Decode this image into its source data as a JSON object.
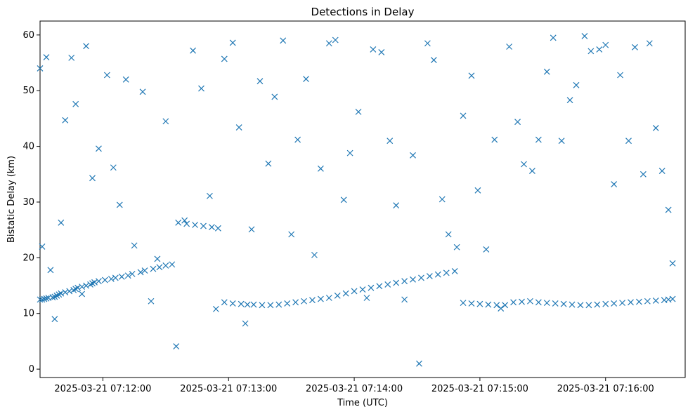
{
  "chart_data": {
    "type": "scatter",
    "title": "Detections in Delay",
    "xlabel": "Time (UTC)",
    "ylabel": "Bistatic Delay (km)",
    "marker": "x",
    "color": "#1f77b4",
    "grid": false,
    "x_ticks": [
      "2025-03-21 07:12:00",
      "2025-03-21 07:13:00",
      "2025-03-21 07:14:00",
      "2025-03-21 07:15:00",
      "2025-03-21 07:16:00"
    ],
    "y_ticks": [
      0,
      10,
      20,
      30,
      40,
      50,
      60
    ],
    "xlim": [
      "2025-03-21 07:11:30",
      "2025-03-21 07:16:38"
    ],
    "ylim": [
      -1.5,
      62.5
    ],
    "series": [
      {
        "x": [
          "07:11:30",
          "07:11:31",
          "07:11:32",
          "07:11:33",
          "07:11:34",
          "07:11:36",
          "07:11:37",
          "07:11:38",
          "07:11:39",
          "07:11:40",
          "07:11:42",
          "07:11:44",
          "07:11:46",
          "07:11:47",
          "07:11:48",
          "07:11:50",
          "07:11:52",
          "07:11:54",
          "07:11:55",
          "07:11:56",
          "07:11:58",
          "07:12:01",
          "07:12:04",
          "07:12:06",
          "07:12:09",
          "07:12:12",
          "07:12:14",
          "07:12:18",
          "07:12:20",
          "07:12:24",
          "07:12:27",
          "07:12:30",
          "07:12:33",
          "07:12:36",
          "07:12:40",
          "07:12:44",
          "07:12:48",
          "07:12:52",
          "07:12:55",
          "07:12:58",
          "07:13:02",
          "07:13:06",
          "07:13:09",
          "07:13:12",
          "07:13:16",
          "07:13:20",
          "07:13:24",
          "07:13:28",
          "07:13:32",
          "07:13:36",
          "07:13:40",
          "07:13:44",
          "07:13:48",
          "07:13:52",
          "07:13:56",
          "07:14:00",
          "07:14:04",
          "07:14:08",
          "07:14:12",
          "07:14:16",
          "07:14:20",
          "07:14:24",
          "07:14:28",
          "07:14:32",
          "07:14:36",
          "07:14:40",
          "07:14:44",
          "07:14:48",
          "07:14:52",
          "07:14:56",
          "07:15:00",
          "07:15:04",
          "07:15:08",
          "07:15:12",
          "07:15:16",
          "07:15:20",
          "07:15:24",
          "07:15:28",
          "07:15:32",
          "07:15:36",
          "07:15:40",
          "07:15:44",
          "07:15:48",
          "07:15:52",
          "07:15:56",
          "07:16:00",
          "07:16:04",
          "07:16:08",
          "07:16:12",
          "07:16:16",
          "07:16:20",
          "07:16:24",
          "07:16:28",
          "07:16:30",
          "07:16:32"
        ],
        "scatter_noise_x": [
          "07:11:30",
          "07:11:31",
          "07:11:33",
          "07:11:35",
          "07:11:37",
          "07:11:40",
          "07:11:42",
          "07:11:45",
          "07:11:47",
          "07:11:50",
          "07:11:52",
          "07:11:55",
          "07:11:58",
          "07:12:02",
          "07:12:05",
          "07:12:08",
          "07:12:11",
          "07:12:15",
          "07:12:19",
          "07:12:23",
          "07:12:26",
          "07:12:30",
          "07:12:35",
          "07:12:39",
          "07:12:43",
          "07:12:47",
          "07:12:51",
          "07:12:54",
          "07:12:58",
          "07:13:02",
          "07:13:05",
          "07:13:08",
          "07:13:11",
          "07:13:15",
          "07:13:19",
          "07:13:22",
          "07:13:26",
          "07:13:30",
          "07:13:33",
          "07:13:37",
          "07:13:41",
          "07:13:44",
          "07:13:48",
          "07:13:51",
          "07:13:55",
          "07:13:58",
          "07:14:02",
          "07:14:06",
          "07:14:09",
          "07:14:13",
          "07:14:17",
          "07:14:20",
          "07:14:24",
          "07:14:28",
          "07:14:31",
          "07:14:35",
          "07:14:38",
          "07:14:42",
          "07:14:45",
          "07:14:49",
          "07:14:52",
          "07:14:56",
          "07:14:59",
          "07:15:03",
          "07:15:07",
          "07:15:10",
          "07:15:14",
          "07:15:18",
          "07:15:21",
          "07:15:25",
          "07:15:28",
          "07:15:32",
          "07:15:35",
          "07:15:39",
          "07:15:43",
          "07:15:46",
          "07:15:50",
          "07:15:53",
          "07:15:57",
          "07:16:00",
          "07:16:04",
          "07:16:07",
          "07:16:11",
          "07:16:14",
          "07:16:18",
          "07:16:21",
          "07:16:24",
          "07:16:27",
          "07:16:30",
          "07:16:32"
        ],
        "scatter_noise_y": [
          54.0,
          22.0,
          56.0,
          17.8,
          9.0,
          26.3,
          44.7,
          55.9,
          47.6,
          13.5,
          58.0,
          34.3,
          39.6,
          52.8,
          36.2,
          29.5,
          52.0,
          22.2,
          49.8,
          12.2,
          19.8,
          44.5,
          4.1,
          26.7,
          57.2,
          50.4,
          31.1,
          10.8,
          55.7,
          58.6,
          43.4,
          8.2,
          25.1,
          51.7,
          36.9,
          48.9,
          59.0,
          24.2,
          41.2,
          52.1,
          20.5,
          36.0,
          58.5,
          59.1,
          30.4,
          38.8,
          46.2,
          12.8,
          57.4,
          56.9,
          41.0,
          29.4,
          12.5,
          38.4,
          1.0,
          58.5,
          55.5,
          30.5,
          24.2,
          21.9,
          45.5,
          52.7,
          32.1,
          21.5,
          41.2,
          10.9,
          57.9,
          44.4,
          36.8,
          35.6,
          41.2,
          53.4,
          59.5,
          41.0,
          48.3,
          51.0,
          59.8,
          57.1,
          57.4,
          58.2,
          33.2,
          52.8,
          41.0,
          57.8,
          35.0,
          58.5,
          43.3,
          35.6,
          28.6,
          19.0
        ],
        "y_track": [
          12.5,
          12.5,
          12.6,
          12.7,
          12.8,
          12.9,
          13.0,
          13.2,
          13.4,
          13.6,
          13.8,
          14.0,
          14.2,
          14.4,
          14.6,
          14.8,
          15.0,
          15.2,
          15.4,
          15.6,
          15.8,
          16.0,
          16.2,
          16.4,
          16.6,
          16.8,
          17.1,
          17.4,
          17.7,
          18.0,
          18.3,
          18.6,
          18.8,
          26.3,
          26.1,
          25.9,
          25.7,
          25.5,
          25.3,
          12.0,
          11.8,
          11.7,
          11.6,
          11.6,
          11.5,
          11.5,
          11.6,
          11.8,
          12.0,
          12.2,
          12.4,
          12.6,
          12.8,
          13.2,
          13.6,
          14.0,
          14.3,
          14.6,
          14.9,
          15.2,
          15.5,
          15.8,
          16.1,
          16.4,
          16.7,
          17.0,
          17.3,
          17.6,
          11.9,
          11.8,
          11.7,
          11.6,
          11.5,
          11.5,
          12.0,
          12.1,
          12.2,
          12.0,
          11.9,
          11.8,
          11.7,
          11.6,
          11.5,
          11.5,
          11.6,
          11.7,
          11.8,
          11.9,
          12.0,
          12.1,
          12.2,
          12.3,
          12.4,
          12.5,
          12.6
        ]
      }
    ]
  }
}
